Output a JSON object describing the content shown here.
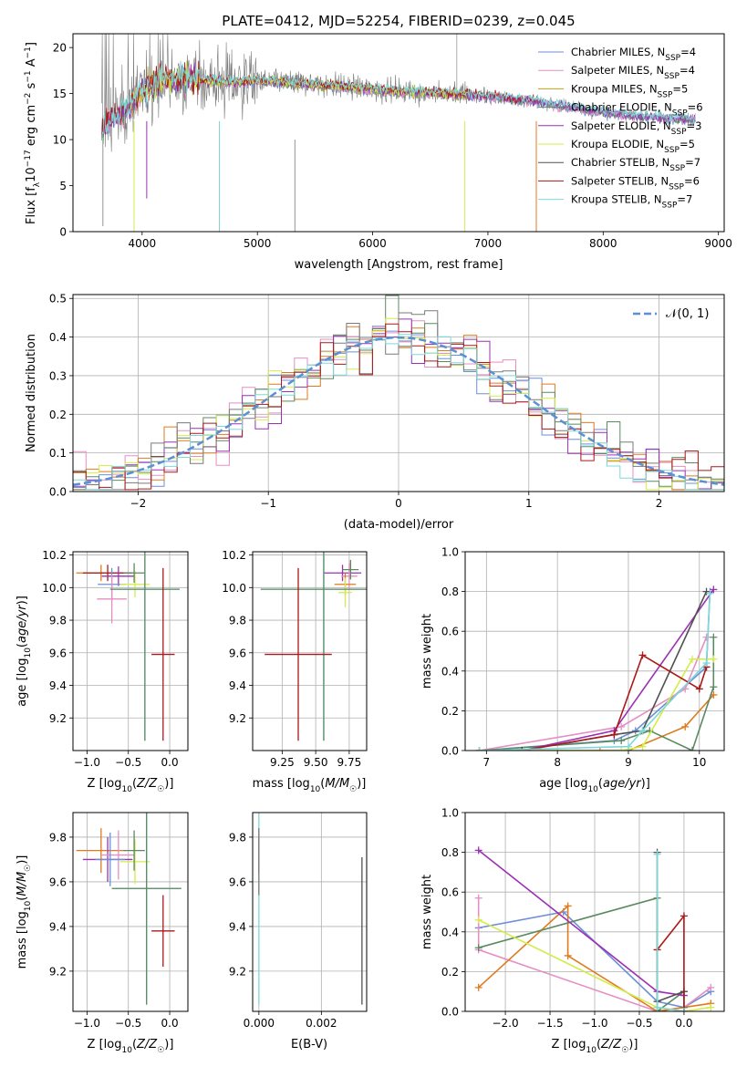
{
  "figure": {
    "title": "PLATE=0412, MJD=52254, FIBERID=0239, z=0.045"
  },
  "colors": {
    "chabrier_miles": "#6d8fd8",
    "salpeter_miles": "#e58fc2",
    "kroupa_miles": "#e07a1f",
    "chabrier_elodie": "#5b8a62",
    "salpeter_elodie": "#9b30b5",
    "kroupa_elodie": "#d4ec4a",
    "chabrier_stelib": "#7a7a7a",
    "salpeter_stelib": "#aa1818",
    "kroupa_stelib": "#7fd8d8",
    "normal_curve": "#5b8fd6",
    "grid": "#b0b0b0"
  },
  "chart_data": [
    {
      "id": "spectrum",
      "type": "line",
      "title": "",
      "xlabel": "wavelength [Angstrom, rest frame]",
      "ylabel": "Flux [f_λ10^-17 erg cm^-2 s^-1 A^-1]",
      "xlim": [
        3400,
        9050
      ],
      "ylim": [
        0,
        21.5
      ],
      "xticks": [
        4000,
        5000,
        6000,
        7000,
        8000,
        9000
      ],
      "yticks": [
        0,
        5,
        10,
        15,
        20
      ],
      "grid": false,
      "legend": "top-right",
      "legend_entries": [
        {
          "base": "Chabrier MILES, N",
          "sub": "SSP",
          "tail": "=4",
          "color": "#6d8fd8"
        },
        {
          "base": "Salpeter MILES, N",
          "sub": "SSP",
          "tail": "=4",
          "color": "#e58fc2"
        },
        {
          "base": "Kroupa MILES, N",
          "sub": "SSP",
          "tail": "=5",
          "color": "#b8a020"
        },
        {
          "base": "Chabrier ELODIE, N",
          "sub": "SSP",
          "tail": "=6",
          "color": "#5b8a62"
        },
        {
          "base": "Salpeter ELODIE, N",
          "sub": "SSP",
          "tail": "=3",
          "color": "#9b30b5"
        },
        {
          "base": "Kroupa ELODIE, N",
          "sub": "SSP",
          "tail": "=5",
          "color": "#d4ec4a"
        },
        {
          "base": "Chabrier STELIB, N",
          "sub": "SSP",
          "tail": "=7",
          "color": "#505050"
        },
        {
          "base": "Salpeter STELIB, N",
          "sub": "SSP",
          "tail": "=6",
          "color": "#aa1818"
        },
        {
          "base": "Kroupa STELIB, N",
          "sub": "SSP",
          "tail": "=7",
          "color": "#7fd8d8"
        }
      ],
      "data_envelope": {
        "x": [
          3650,
          3800,
          3900,
          4000,
          4200,
          4400,
          4600,
          4800,
          5000,
          5300,
          5600,
          5900,
          6200,
          6500,
          6800,
          7100,
          7400,
          7700,
          8000,
          8300,
          8600,
          8800
        ],
        "y": [
          11.5,
          12.8,
          13.8,
          15.5,
          16.5,
          16.6,
          16.4,
          16.3,
          16.4,
          16.2,
          15.9,
          15.6,
          15.3,
          15.1,
          14.9,
          14.6,
          14.2,
          13.6,
          13.0,
          12.6,
          12.3,
          12.2
        ]
      }
    },
    {
      "id": "residuals",
      "type": "histogram",
      "title": "",
      "xlabel": "(data-model)/error",
      "ylabel": "Normed distribution",
      "xlim": [
        -2.5,
        2.5
      ],
      "ylim": [
        0,
        0.51
      ],
      "xticks": [
        -2,
        -1,
        0,
        1,
        2
      ],
      "yticks": [
        0.0,
        0.1,
        0.2,
        0.3,
        0.4,
        0.5
      ],
      "bin_width": 0.1,
      "grid": true,
      "legend": "top-right",
      "legend_label": "𝒩(0, 1)",
      "series": [
        {
          "name": "Chabrier MILES",
          "color": "#6d8fd8"
        },
        {
          "name": "Salpeter MILES",
          "color": "#e58fc2"
        },
        {
          "name": "Kroupa MILES",
          "color": "#e07a1f"
        },
        {
          "name": "Chabrier ELODIE",
          "color": "#5b8a62"
        },
        {
          "name": "Salpeter ELODIE",
          "color": "#9b30b5"
        },
        {
          "name": "Kroupa ELODIE",
          "color": "#d4ec4a"
        },
        {
          "name": "Chabrier STELIB",
          "color": "#7a7a7a"
        },
        {
          "name": "Salpeter STELIB",
          "color": "#aa1818"
        },
        {
          "name": "Kroupa STELIB",
          "color": "#7fd8d8"
        }
      ]
    },
    {
      "id": "age_vs_Z",
      "type": "errorbar",
      "xlabel": "Z [log10(Z/Z☉)]",
      "ylabel": "age  [log10(age/yr)]",
      "xlim": [
        -1.17,
        0.22
      ],
      "ylim": [
        9.0,
        10.22
      ],
      "xticks": [
        -1.0,
        -0.5,
        0.0
      ],
      "yticks": [
        9.2,
        9.4,
        9.6,
        9.8,
        10.0,
        10.2
      ],
      "grid": true,
      "points": [
        {
          "x": -0.83,
          "y": 10.09,
          "xerr": 0.3,
          "yerr": 0.05,
          "color": "#e07a1f"
        },
        {
          "x": -0.75,
          "y": 10.09,
          "xerr": 0.3,
          "yerr": 0.05,
          "color": "#aa1818"
        },
        {
          "x": -0.62,
          "y": 10.07,
          "xerr": 0.2,
          "yerr": 0.06,
          "color": "#9b30b5"
        },
        {
          "x": -0.7,
          "y": 10.02,
          "xerr": 0.17,
          "yerr": 0.1,
          "color": "#6d8fd8"
        },
        {
          "x": -0.7,
          "y": 9.93,
          "xerr": 0.18,
          "yerr": 0.15,
          "color": "#e58fc2"
        },
        {
          "x": -0.42,
          "y": 10.02,
          "xerr": 0.18,
          "yerr": 0.08,
          "color": "#d4ec4a"
        },
        {
          "x": -0.43,
          "y": 10.09,
          "xerr": 0.13,
          "yerr": 0.06,
          "color": "#5b8a62"
        },
        {
          "x": -0.3,
          "y": 9.99,
          "xerr": 0.42,
          "yerr": 0.93,
          "color": "#7fd8d8"
        },
        {
          "x": -0.3,
          "y": 9.99,
          "xerr": 0.42,
          "yerr": 0.93,
          "color": "#5b8a62"
        },
        {
          "x": -0.08,
          "y": 9.59,
          "xerr": 0.14,
          "yerr": 0.53,
          "color": "#aa1818"
        }
      ]
    },
    {
      "id": "age_vs_mass",
      "type": "errorbar",
      "xlabel": "mass [log10(M/M☉)]",
      "ylabel": "",
      "xlim": [
        9.03,
        9.88
      ],
      "ylim": [
        9.0,
        10.22
      ],
      "xticks": [
        9.25,
        9.5,
        9.75
      ],
      "yticks": [
        9.2,
        9.4,
        9.6,
        9.8,
        10.0,
        10.2
      ],
      "grid": true,
      "points": [
        {
          "x": 9.7,
          "y": 10.09,
          "xerr": 0.14,
          "yerr": 0.05,
          "color": "#9b30b5"
        },
        {
          "x": 9.75,
          "y": 10.07,
          "xerr": 0.06,
          "yerr": 0.08,
          "color": "#e58fc2"
        },
        {
          "x": 9.72,
          "y": 10.02,
          "xerr": 0.08,
          "yerr": 0.07,
          "color": "#e07a1f"
        },
        {
          "x": 9.76,
          "y": 10.11,
          "xerr": 0.06,
          "yerr": 0.06,
          "color": "#5b8a62"
        },
        {
          "x": 9.72,
          "y": 9.97,
          "xerr": 0.05,
          "yerr": 0.09,
          "color": "#d4ec4a"
        },
        {
          "x": 9.56,
          "y": 9.99,
          "xerr": 0.47,
          "yerr": 0.93,
          "color": "#7fd8d8"
        },
        {
          "x": 9.56,
          "y": 9.99,
          "xerr": 0.47,
          "yerr": 0.93,
          "color": "#5b8a62"
        },
        {
          "x": 9.37,
          "y": 9.59,
          "xerr": 0.25,
          "yerr": 0.53,
          "color": "#aa1818"
        }
      ]
    },
    {
      "id": "mass_weight_vs_age",
      "type": "line",
      "xlabel": "age  [log10(age/yr)]",
      "ylabel": "mass weight",
      "xlim": [
        6.7,
        10.35
      ],
      "ylim": [
        0,
        1.0
      ],
      "xticks": [
        7,
        8,
        9,
        10
      ],
      "yticks": [
        0.0,
        0.2,
        0.4,
        0.6,
        0.8,
        1.0
      ],
      "grid": true,
      "series": [
        {
          "name": "Chabrier MILES",
          "color": "#6d8fd8",
          "x": [
            6.9,
            8.8,
            9.1,
            10.1,
            10.15
          ],
          "y": [
            0.0,
            0.05,
            0.1,
            0.42,
            0.8
          ]
        },
        {
          "name": "Salpeter MILES",
          "color": "#e58fc2",
          "x": [
            6.9,
            8.9,
            9.8,
            10.1
          ],
          "y": [
            0.0,
            0.12,
            0.31,
            0.57
          ]
        },
        {
          "name": "Kroupa MILES",
          "color": "#e07a1f",
          "x": [
            6.9,
            8.6,
            9.0,
            9.8,
            10.2
          ],
          "y": [
            0.0,
            0.0,
            0.0,
            0.12,
            0.28
          ]
        },
        {
          "name": "Chabrier ELODIE",
          "color": "#5b8a62",
          "x": [
            6.9,
            8.9,
            9.3,
            9.9,
            10.2,
            10.2
          ],
          "y": [
            0.0,
            0.05,
            0.1,
            0.0,
            0.32,
            0.57
          ]
        },
        {
          "name": "Salpeter ELODIE",
          "color": "#9b30b5",
          "x": [
            7.5,
            8.8,
            10.2
          ],
          "y": [
            0.0,
            0.1,
            0.81
          ]
        },
        {
          "name": "Kroupa ELODIE",
          "color": "#d4ec4a",
          "x": [
            6.9,
            8.9,
            9.2,
            9.9,
            10.2
          ],
          "y": [
            0.0,
            0.0,
            0.02,
            0.46,
            0.46
          ]
        },
        {
          "name": "Chabrier STELIB",
          "color": "#505050",
          "x": [
            7.5,
            8.8,
            9.2,
            10.1
          ],
          "y": [
            0.0,
            0.08,
            0.1,
            0.8
          ]
        },
        {
          "name": "Salpeter STELIB",
          "color": "#aa1818",
          "x": [
            7.5,
            8.8,
            9.2,
            10.0,
            10.1
          ],
          "y": [
            0.0,
            0.08,
            0.48,
            0.31,
            0.42
          ]
        },
        {
          "name": "Kroupa STELIB",
          "color": "#7fd8d8",
          "x": [
            6.9,
            9.0,
            9.2,
            10.1,
            10.15
          ],
          "y": [
            0.0,
            0.02,
            0.1,
            0.44,
            0.79
          ]
        }
      ]
    },
    {
      "id": "mass_vs_Z",
      "type": "errorbar",
      "xlabel": "Z [log10(Z/Z☉)]",
      "ylabel": "mass [log10(M/M☉)]",
      "xlim": [
        -1.17,
        0.22
      ],
      "ylim": [
        9.02,
        9.91
      ],
      "xticks": [
        -1.0,
        -0.5,
        0.0
      ],
      "yticks": [
        9.2,
        9.4,
        9.6,
        9.8
      ],
      "grid": true,
      "points": [
        {
          "x": -0.83,
          "y": 9.74,
          "xerr": 0.3,
          "yerr": 0.1,
          "color": "#e07a1f"
        },
        {
          "x": -0.75,
          "y": 9.7,
          "xerr": 0.3,
          "yerr": 0.1,
          "color": "#9b30b5"
        },
        {
          "x": -0.62,
          "y": 9.72,
          "xerr": 0.2,
          "yerr": 0.11,
          "color": "#e58fc2"
        },
        {
          "x": -0.72,
          "y": 9.7,
          "xerr": 0.18,
          "yerr": 0.12,
          "color": "#6d8fd8"
        },
        {
          "x": -0.42,
          "y": 9.69,
          "xerr": 0.18,
          "yerr": 0.1,
          "color": "#d4ec4a"
        },
        {
          "x": -0.43,
          "y": 9.74,
          "xerr": 0.13,
          "yerr": 0.09,
          "color": "#5b8a62"
        },
        {
          "x": -0.28,
          "y": 9.57,
          "xerr": 0.42,
          "yerr": 0.52,
          "color": "#7fd8d8"
        },
        {
          "x": -0.28,
          "y": 9.57,
          "xerr": 0.42,
          "yerr": 0.52,
          "color": "#5b8a62"
        },
        {
          "x": -0.08,
          "y": 9.38,
          "xerr": 0.14,
          "yerr": 0.16,
          "color": "#aa1818"
        }
      ]
    },
    {
      "id": "mass_vs_ebv",
      "type": "errorbar",
      "xlabel": "E(B-V)",
      "ylabel": "",
      "xlim": [
        -0.0002,
        0.00345
      ],
      "ylim": [
        9.02,
        9.91
      ],
      "xticks": [
        0.0,
        0.002
      ],
      "xtick_labels": [
        "0.000",
        "0.002"
      ],
      "yticks": [
        9.2,
        9.4,
        9.6,
        9.8
      ],
      "grid": true,
      "points": [
        {
          "x": 0.0,
          "y": 9.74,
          "xerr": 0,
          "yerr": 0.1,
          "color": "#9b30b5"
        },
        {
          "x": 0.0,
          "y": 9.72,
          "xerr": 0,
          "yerr": 0.08,
          "color": "#aa1818"
        },
        {
          "x": 0.0,
          "y": 9.57,
          "xerr": 0,
          "yerr": 0.52,
          "color": "#7fd8d8"
        },
        {
          "x": 0.0,
          "y": 9.69,
          "xerr": 0,
          "yerr": 0.15,
          "color": "#7a7a7a"
        },
        {
          "x": 0.0033,
          "y": 9.38,
          "xerr": 0,
          "yerr": 0.33,
          "color": "#505050"
        }
      ]
    },
    {
      "id": "mass_weight_vs_Z",
      "type": "line",
      "xlabel": "Z [log10(Z/Z☉)]",
      "ylabel": "mass weight",
      "xlim": [
        -2.45,
        0.45
      ],
      "ylim": [
        0,
        1.0
      ],
      "xticks": [
        -2.0,
        -1.5,
        -1.0,
        -0.5,
        0.0
      ],
      "yticks": [
        0.0,
        0.2,
        0.4,
        0.6,
        0.8,
        1.0
      ],
      "grid": true,
      "series": [
        {
          "name": "Chabrier MILES",
          "color": "#6d8fd8",
          "x": [
            -2.3,
            -1.35,
            -0.3,
            0.0,
            0.3
          ],
          "y": [
            0.42,
            0.5,
            0.05,
            0.02,
            0.1
          ]
        },
        {
          "name": "Salpeter MILES",
          "color": "#e58fc2",
          "x": [
            -2.3,
            -2.3,
            -0.3,
            0.0,
            0.3
          ],
          "y": [
            0.57,
            0.31,
            0.0,
            0.02,
            0.12
          ]
        },
        {
          "name": "Kroupa MILES",
          "color": "#e07a1f",
          "x": [
            -2.3,
            -1.3,
            -1.3,
            -0.3,
            0.0,
            0.3
          ],
          "y": [
            0.12,
            0.53,
            0.28,
            0.0,
            0.02,
            0.04
          ]
        },
        {
          "name": "Chabrier ELODIE",
          "color": "#5b8a62",
          "x": [
            -2.3,
            -0.3,
            -0.3,
            0.0,
            0.0
          ],
          "y": [
            0.32,
            0.57,
            0.0,
            0.1,
            0.02
          ]
        },
        {
          "name": "Salpeter ELODIE",
          "color": "#9b30b5",
          "x": [
            -2.3,
            -0.3,
            0.0
          ],
          "y": [
            0.81,
            0.1,
            0.08
          ]
        },
        {
          "name": "Kroupa ELODIE",
          "color": "#d4ec4a",
          "x": [
            -2.3,
            -0.3,
            0.0,
            0.3
          ],
          "y": [
            0.46,
            0.02,
            0.0,
            0.02
          ]
        },
        {
          "name": "Chabrier STELIB",
          "color": "#505050",
          "x": [
            -0.3,
            -0.3,
            0.0
          ],
          "y": [
            0.8,
            0.05,
            0.1
          ]
        },
        {
          "name": "Salpeter STELIB",
          "color": "#aa1818",
          "x": [
            -0.3,
            0.0,
            0.0
          ],
          "y": [
            0.31,
            0.48,
            0.0
          ]
        },
        {
          "name": "Kroupa STELIB",
          "color": "#7fd8d8",
          "x": [
            -0.3,
            -0.3,
            0.0
          ],
          "y": [
            0.79,
            0.02,
            0.0
          ]
        }
      ]
    }
  ]
}
